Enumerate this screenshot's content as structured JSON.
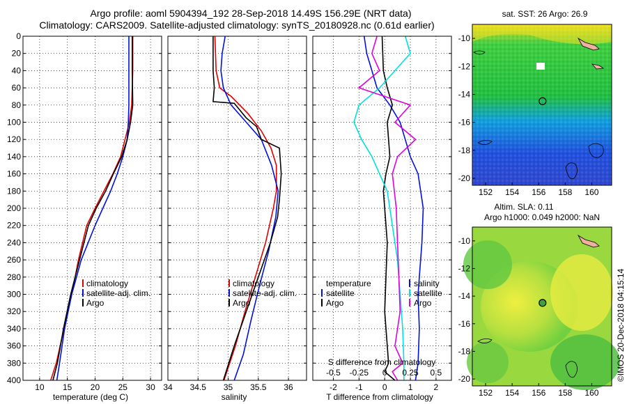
{
  "figure": {
    "title_line1": "Argo profile: aoml 5904394_192 28-Sep-2018 14.49S 156.29E (NRT data)",
    "title_line2": "Climatology: CARS2009. Satellite-adjusted climatology: synTS_20180928.nc (0.61d earlier)",
    "credit": "©IMOS 20-Dec-2018 04:15:14"
  },
  "colors": {
    "climatology": "#e00000",
    "satellite": "#0010e0",
    "argo": "#000000",
    "s_clim": "#00e0e0",
    "s_argo": "#e000e0"
  },
  "chart_data": [
    {
      "type": "line",
      "id": "temperature",
      "xlabel": "temperature (deg C)",
      "ylabel": "",
      "xlim": [
        7,
        32
      ],
      "ylim": [
        0,
        400
      ],
      "xticks": [
        10,
        15,
        20,
        25,
        30
      ],
      "yticks": [
        0,
        20,
        40,
        60,
        80,
        100,
        120,
        140,
        160,
        180,
        200,
        220,
        240,
        260,
        280,
        300,
        320,
        340,
        360,
        380,
        400
      ],
      "legend": [
        "climatology",
        "satellite-adj. clim.",
        "Argo"
      ],
      "series": [
        {
          "name": "climatology",
          "color": "#e00000",
          "x": [
            26.8,
            26.8,
            26.6,
            26.2,
            25.4,
            24.6,
            23.2,
            21.6,
            20.0,
            18.5,
            17.0,
            15.8,
            14.4,
            13.0,
            12.0
          ],
          "y": [
            0,
            40,
            80,
            100,
            120,
            140,
            160,
            180,
            200,
            220,
            260,
            300,
            340,
            380,
            400
          ]
        },
        {
          "name": "satellite-adj. clim.",
          "color": "#0010e0",
          "x": [
            26.1,
            26.1,
            26.1,
            26.0,
            25.8,
            25.0,
            24.0,
            22.8,
            21.4,
            20.0,
            17.5,
            15.8,
            14.5,
            13.6,
            13.1
          ],
          "y": [
            0,
            40,
            80,
            100,
            120,
            140,
            160,
            180,
            200,
            220,
            260,
            300,
            340,
            380,
            400
          ]
        },
        {
          "name": "Argo",
          "color": "#000000",
          "x": [
            26.7,
            26.7,
            26.8,
            26.4,
            25.8,
            24.8,
            23.3,
            21.9,
            20.2,
            18.8,
            17.2,
            15.6,
            14.3,
            13.2,
            12.4
          ],
          "y": [
            0,
            40,
            80,
            100,
            120,
            140,
            160,
            180,
            200,
            220,
            260,
            300,
            340,
            380,
            400
          ]
        }
      ]
    },
    {
      "type": "line",
      "id": "salinity",
      "xlabel": "salinity",
      "ylabel": "",
      "xlim": [
        34.0,
        36.3
      ],
      "ylim": [
        0,
        400
      ],
      "xticks": [
        34,
        34.5,
        35,
        35.5,
        36
      ],
      "legend": [
        "climatology",
        "satellite-adj. clim.",
        "Argo"
      ],
      "series": [
        {
          "name": "climatology",
          "color": "#e00000",
          "x": [
            34.78,
            34.8,
            34.86,
            35.05,
            35.33,
            35.55,
            35.71,
            35.8,
            35.8,
            35.75,
            35.62,
            35.45,
            35.28,
            35.12,
            34.93
          ],
          "y": [
            0,
            40,
            60,
            70,
            90,
            110,
            130,
            150,
            180,
            200,
            240,
            280,
            320,
            360,
            400
          ]
        },
        {
          "name": "satellite-adj. clim.",
          "color": "#0010e0",
          "x": [
            34.95,
            34.9,
            34.88,
            34.92,
            35.05,
            35.3,
            35.55,
            35.72,
            35.83,
            35.79,
            35.67,
            35.52,
            35.38,
            35.25,
            35.1
          ],
          "y": [
            0,
            20,
            40,
            60,
            80,
            100,
            120,
            150,
            180,
            210,
            250,
            290,
            330,
            370,
            400
          ]
        },
        {
          "name": "Argo",
          "color": "#000000",
          "x": [
            34.75,
            34.75,
            34.77,
            34.75,
            35.1,
            35.3,
            35.47,
            35.55,
            35.85,
            35.88,
            35.85,
            35.82,
            35.7,
            35.5,
            35.3,
            35.1,
            34.92
          ],
          "y": [
            0,
            40,
            60,
            76,
            78,
            95,
            105,
            120,
            130,
            160,
            190,
            210,
            240,
            280,
            320,
            360,
            400
          ]
        }
      ]
    },
    {
      "type": "line",
      "id": "differences",
      "xlabel": "T difference from climatology",
      "x2label": "S difference from climatology",
      "xlim": [
        -2.8,
        2.6
      ],
      "ylim": [
        0,
        400
      ],
      "xticks": [
        -2,
        -1,
        0,
        1,
        2
      ],
      "x2ticks": [
        "-0.5",
        "-0.25",
        "0",
        "0.25",
        "0.5"
      ],
      "legend_left": [
        "temperature",
        "satellite",
        "Argo"
      ],
      "legend_right": [
        "salinity",
        "satellite",
        "Argo"
      ],
      "series": [
        {
          "name": "T satellite",
          "color": "#0010e0",
          "x": [
            -0.8,
            -0.7,
            -0.5,
            -0.3,
            0.2,
            0.6,
            0.8,
            1.0,
            1.3,
            1.5,
            1.45,
            1.35,
            1.3,
            1.35,
            1.3,
            1.2
          ],
          "y": [
            0,
            20,
            40,
            60,
            80,
            100,
            120,
            140,
            160,
            200,
            240,
            280,
            300,
            340,
            380,
            400
          ]
        },
        {
          "name": "T Argo",
          "color": "#000000",
          "x": [
            -0.1,
            -0.05,
            0.1,
            0.3,
            0.1,
            0.2,
            0.05,
            -0.05,
            0.0,
            0.1,
            0.05,
            0.0,
            0.1,
            0.15,
            0.0,
            0.4
          ],
          "y": [
            0,
            40,
            60,
            80,
            100,
            140,
            160,
            180,
            200,
            240,
            280,
            320,
            360,
            380,
            390,
            400
          ]
        },
        {
          "name": "S satellite",
          "color": "#00e0e0",
          "x": [
            0.8,
            1.0,
            0.4,
            -0.2,
            -1.0,
            -1.2,
            -0.9,
            -0.5,
            -0.2,
            0.1,
            0.3,
            0.5,
            0.6,
            0.7,
            0.75,
            0.75
          ],
          "y": [
            0,
            20,
            40,
            60,
            80,
            100,
            120,
            140,
            160,
            180,
            220,
            260,
            300,
            340,
            380,
            400
          ]
        },
        {
          "name": "S Argo",
          "color": "#e000e0",
          "x": [
            -0.3,
            -0.5,
            -0.2,
            -1.0,
            1.0,
            0.4,
            1.2,
            0.5,
            0.3,
            0.45,
            0.5,
            0.55,
            0.6,
            0.4,
            0.7,
            0.3,
            0.5
          ],
          "y": [
            0,
            20,
            40,
            60,
            80,
            100,
            120,
            140,
            160,
            200,
            240,
            280,
            320,
            360,
            380,
            390,
            400
          ]
        }
      ]
    },
    {
      "type": "heatmap",
      "id": "sst_map",
      "title": "sat. SST: 26 Argo: 26.9",
      "xlim": [
        151,
        161.5
      ],
      "ylim": [
        -20.5,
        -9
      ],
      "xticks": [
        152,
        154,
        156,
        158,
        160
      ],
      "yticks": [
        -10,
        -12,
        -14,
        -16,
        -18,
        -20
      ],
      "marker": [
        156.29,
        -14.49
      ]
    },
    {
      "type": "heatmap",
      "id": "sla_map",
      "title_line1": "Altim. SLA: 0.11",
      "title_line2": "Argo h1000: 0.049 h2000: NaN",
      "xlim": [
        151,
        161.5
      ],
      "ylim": [
        -20.5,
        -9
      ],
      "xticks": [
        152,
        154,
        156,
        158,
        160
      ],
      "yticks": [
        -10,
        -12,
        -14,
        -16,
        -18,
        -20
      ],
      "marker": [
        156.29,
        -14.49
      ]
    }
  ]
}
